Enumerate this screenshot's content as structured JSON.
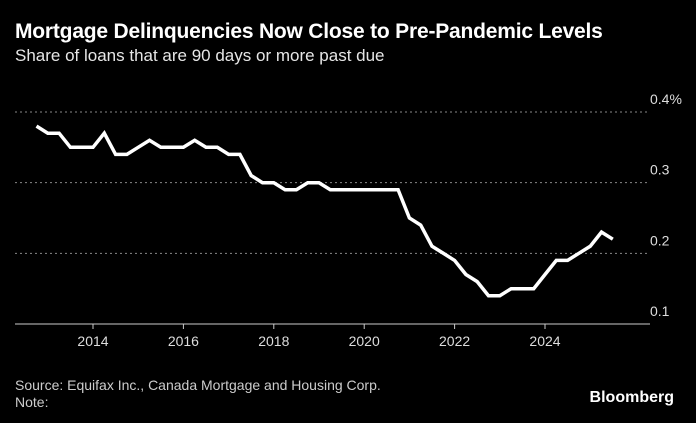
{
  "chart_data": {
    "type": "line",
    "title": "Mortgage Delinquencies Now Close to Pre-Pandemic Levels",
    "subtitle": "Share of loans that are 90 days or more past due",
    "xlabel": "",
    "ylabel": "",
    "x_start": 2012.75,
    "x_step": 0.25,
    "values": [
      0.38,
      0.37,
      0.37,
      0.35,
      0.35,
      0.35,
      0.37,
      0.34,
      0.34,
      0.35,
      0.36,
      0.35,
      0.35,
      0.35,
      0.36,
      0.35,
      0.35,
      0.34,
      0.34,
      0.31,
      0.3,
      0.3,
      0.29,
      0.29,
      0.3,
      0.3,
      0.29,
      0.29,
      0.29,
      0.29,
      0.29,
      0.29,
      0.29,
      0.25,
      0.24,
      0.21,
      0.2,
      0.19,
      0.17,
      0.16,
      0.14,
      0.14,
      0.15,
      0.15,
      0.15,
      0.17,
      0.19,
      0.19,
      0.2,
      0.21,
      0.23,
      0.22
    ],
    "ylim": [
      0.1,
      0.4
    ],
    "yticks": [
      {
        "v": 0.4,
        "label": "0.4%"
      },
      {
        "v": 0.3,
        "label": "0.3"
      },
      {
        "v": 0.2,
        "label": "0.2"
      },
      {
        "v": 0.1,
        "label": "0.1"
      }
    ],
    "xticks": [
      {
        "v": 2014,
        "label": "2014"
      },
      {
        "v": 2016,
        "label": "2016"
      },
      {
        "v": 2018,
        "label": "2018"
      },
      {
        "v": 2020,
        "label": "2020"
      },
      {
        "v": 2022,
        "label": "2022"
      },
      {
        "v": 2024,
        "label": "2024"
      }
    ],
    "grid": true,
    "line_color": "#ffffff"
  },
  "footer": {
    "source": "Source: Equifax Inc., Canada Mortgage and Housing Corp.",
    "note": "Note:",
    "brand": "Bloomberg"
  }
}
